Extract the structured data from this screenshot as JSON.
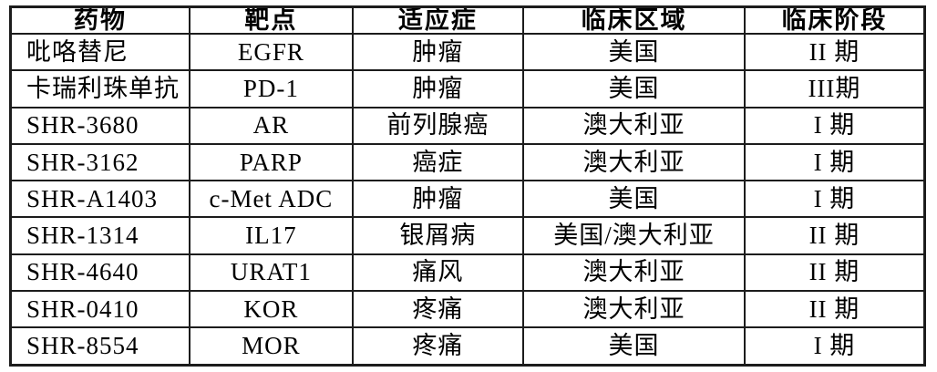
{
  "table": {
    "columns": [
      {
        "label": "药物"
      },
      {
        "label": "靶点"
      },
      {
        "label": "适应症"
      },
      {
        "label": "临床区域"
      },
      {
        "label": "临床阶段"
      }
    ],
    "rows": [
      [
        "吡咯替尼",
        "EGFR",
        "肿瘤",
        "美国",
        "II 期"
      ],
      [
        "卡瑞利珠单抗",
        "PD-1",
        "肿瘤",
        "美国",
        "III期"
      ],
      [
        "SHR-3680",
        "AR",
        "前列腺癌",
        "澳大利亚",
        "I 期"
      ],
      [
        "SHR-3162",
        "PARP",
        "癌症",
        "澳大利亚",
        "I 期"
      ],
      [
        "SHR-A1403",
        "c-Met ADC",
        "肿瘤",
        "美国",
        "I 期"
      ],
      [
        "SHR-1314",
        "IL17",
        "银屑病",
        "美国/澳大利亚",
        "II 期"
      ],
      [
        "SHR-4640",
        "URAT1",
        "痛风",
        "澳大利亚",
        "II 期"
      ],
      [
        "SHR-0410",
        "KOR",
        "疼痛",
        "澳大利亚",
        "II 期"
      ],
      [
        "SHR-8554",
        "MOR",
        "疼痛",
        "美国",
        "I 期"
      ]
    ],
    "colors": {
      "border": "#1c1c1c",
      "text": "#000000",
      "background": "#ffffff"
    }
  }
}
